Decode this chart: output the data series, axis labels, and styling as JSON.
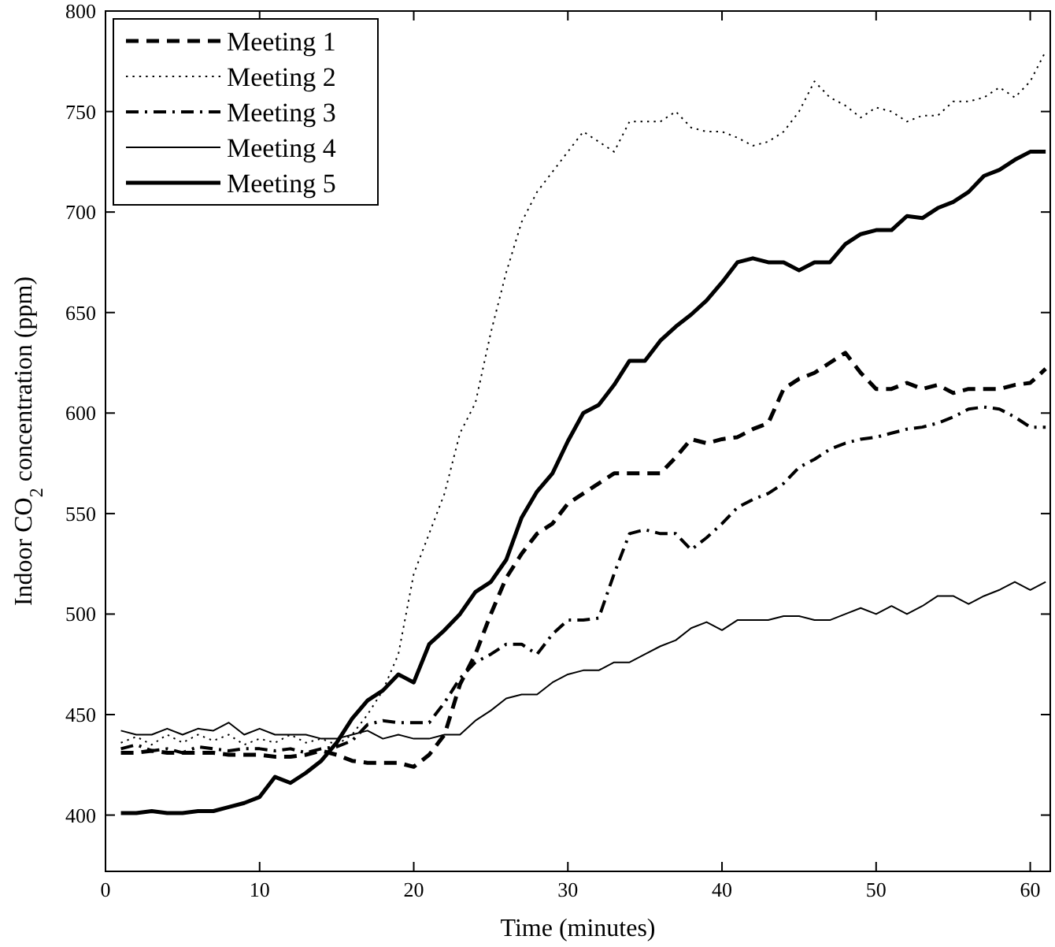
{
  "chart_data": {
    "type": "line",
    "xlabel": "Time (minutes)",
    "ylabel": "Indoor CO$_{2}$ concentration (ppm)",
    "x": [
      1,
      2,
      3,
      4,
      5,
      6,
      7,
      8,
      9,
      10,
      11,
      12,
      13,
      14,
      15,
      16,
      17,
      18,
      19,
      20,
      21,
      22,
      23,
      24,
      25,
      26,
      27,
      28,
      29,
      30,
      31,
      32,
      33,
      34,
      35,
      36,
      37,
      38,
      39,
      40,
      41,
      42,
      43,
      44,
      45,
      46,
      47,
      48,
      49,
      50,
      51,
      52,
      53,
      54,
      55,
      56,
      57,
      58,
      59,
      60,
      61
    ],
    "series": [
      {
        "name": "Meeting 1",
        "color": "#000000",
        "line_style": "dashed",
        "values": [
          431,
          431,
          432,
          431,
          431,
          431,
          431,
          430,
          430,
          430,
          429,
          429,
          430,
          432,
          430,
          427,
          426,
          426,
          426,
          424,
          430,
          440,
          465,
          480,
          500,
          518,
          530,
          540,
          545,
          555,
          560,
          565,
          570,
          570,
          570,
          570,
          578,
          587,
          585,
          587,
          588,
          592,
          595,
          612,
          617,
          620,
          625,
          630,
          620,
          612,
          612,
          615,
          612,
          614,
          610,
          612,
          612,
          612,
          614,
          615,
          622
        ]
      },
      {
        "name": "Meeting 2",
        "color": "#000000",
        "line_style": "dotted",
        "values": [
          436,
          439,
          435,
          440,
          436,
          440,
          437,
          440,
          435,
          438,
          436,
          440,
          436,
          438,
          435,
          440,
          450,
          462,
          480,
          520,
          540,
          560,
          590,
          605,
          640,
          670,
          695,
          710,
          720,
          730,
          740,
          735,
          730,
          745,
          745,
          745,
          750,
          742,
          740,
          740,
          737,
          733,
          735,
          740,
          750,
          765,
          757,
          753,
          747,
          752,
          750,
          745,
          748,
          748,
          755,
          755,
          757,
          762,
          757,
          765,
          780
        ]
      },
      {
        "name": "Meeting 3",
        "color": "#000000",
        "line_style": "dashdot",
        "values": [
          433,
          435,
          432,
          433,
          431,
          434,
          433,
          432,
          433,
          433,
          432,
          433,
          431,
          433,
          434,
          437,
          445,
          447,
          446,
          446,
          446,
          456,
          468,
          476,
          480,
          485,
          485,
          480,
          490,
          497,
          497,
          498,
          520,
          540,
          542,
          540,
          540,
          532,
          538,
          545,
          553,
          557,
          560,
          565,
          573,
          577,
          582,
          585,
          587,
          588,
          590,
          592,
          593,
          595,
          598,
          602,
          603,
          602,
          598,
          593,
          593
        ]
      },
      {
        "name": "Meeting 4",
        "color": "#000000",
        "line_style": "solid",
        "values": [
          442,
          440,
          440,
          443,
          440,
          443,
          442,
          446,
          440,
          443,
          440,
          440,
          440,
          438,
          438,
          440,
          442,
          438,
          440,
          438,
          438,
          440,
          440,
          447,
          452,
          458,
          460,
          460,
          466,
          470,
          472,
          472,
          476,
          476,
          480,
          484,
          487,
          493,
          496,
          492,
          497,
          497,
          497,
          499,
          499,
          497,
          497,
          500,
          503,
          500,
          504,
          500,
          504,
          509,
          509,
          505,
          509,
          512,
          516,
          512,
          516
        ]
      },
      {
        "name": "Meeting 5",
        "color": "#000000",
        "line_style": "solid",
        "values": [
          401,
          401,
          402,
          401,
          401,
          402,
          402,
          404,
          406,
          409,
          419,
          416,
          421,
          427,
          436,
          448,
          457,
          462,
          470,
          466,
          485,
          492,
          500,
          511,
          516,
          527,
          548,
          561,
          570,
          586,
          600,
          604,
          614,
          626,
          626,
          636,
          643,
          649,
          656,
          665,
          675,
          677,
          675,
          675,
          671,
          675,
          675,
          684,
          689,
          691,
          691,
          698,
          697,
          702,
          705,
          710,
          718,
          721,
          726,
          730,
          730
        ]
      }
    ],
    "xlim": [
      0,
      61.3
    ],
    "xticks": [
      0,
      10,
      20,
      30,
      40,
      50,
      60
    ],
    "ylim": [
      372,
      800
    ],
    "yticks": [
      400,
      450,
      500,
      550,
      600,
      650,
      700,
      750,
      800
    ],
    "grid": false,
    "legend": "top left",
    "marker": "none"
  }
}
